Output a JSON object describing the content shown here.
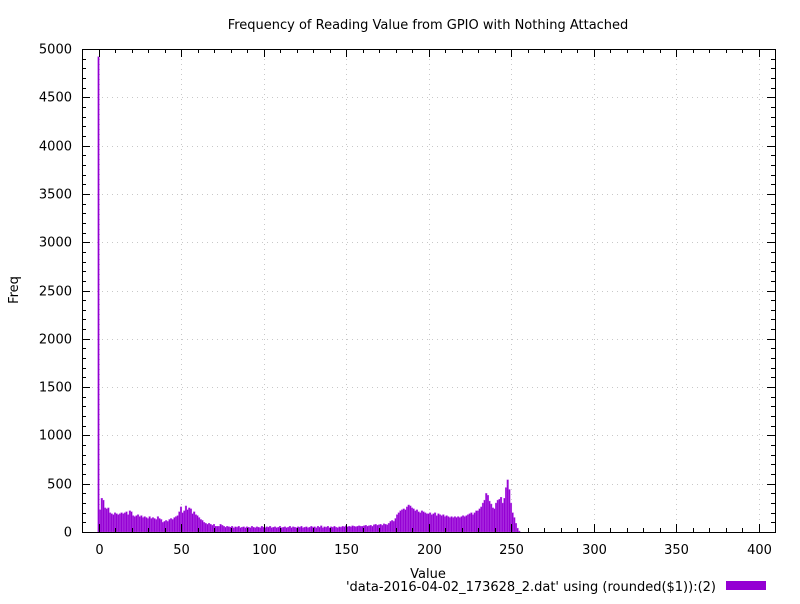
{
  "chart_data": {
    "type": "bar",
    "title": "Frequency of Reading Value from GPIO with Nothing Attached",
    "xlabel": "Value",
    "ylabel": "Freq",
    "xlim": [
      -10,
      410
    ],
    "ylim": [
      0,
      5000
    ],
    "xticks": [
      0,
      50,
      100,
      150,
      200,
      250,
      300,
      350,
      400
    ],
    "yticks": [
      0,
      500,
      1000,
      1500,
      2000,
      2500,
      3000,
      3500,
      4000,
      4500,
      5000
    ],
    "grid": true,
    "legend_position": "bottom-right",
    "series": [
      {
        "name": "'data-2016-04-02_173628_2.dat' using (rounded($1)):(2)",
        "color": "#9400d3",
        "x_start": 0,
        "values": [
          4920,
          230,
          350,
          330,
          250,
          240,
          250,
          200,
          190,
          180,
          200,
          190,
          180,
          190,
          200,
          190,
          200,
          210,
          180,
          220,
          210,
          170,
          160,
          170,
          180,
          160,
          170,
          150,
          160,
          150,
          140,
          160,
          140,
          150,
          140,
          130,
          160,
          140,
          130,
          100,
          110,
          120,
          110,
          130,
          140,
          130,
          150,
          160,
          170,
          210,
          260,
          200,
          220,
          270,
          230,
          250,
          240,
          190,
          210,
          180,
          170,
          150,
          130,
          120,
          100,
          90,
          80,
          90,
          80,
          70,
          80,
          60,
          60,
          60,
          80,
          70,
          60,
          50,
          60,
          55,
          50,
          60,
          45,
          55,
          50,
          60,
          45,
          50,
          55,
          45,
          55,
          50,
          45,
          60,
          50,
          45,
          55,
          50,
          45,
          60,
          50,
          45,
          55,
          50,
          60,
          45,
          50,
          55,
          45,
          50,
          60,
          45,
          50,
          55,
          45,
          50,
          60,
          45,
          55,
          50,
          45,
          55,
          50,
          60,
          45,
          50,
          55,
          45,
          50,
          60,
          50,
          55,
          45,
          60,
          50,
          65,
          45,
          55,
          50,
          60,
          45,
          55,
          50,
          60,
          50,
          45,
          55,
          50,
          60,
          55,
          65,
          55,
          60,
          55,
          65,
          60,
          55,
          60,
          65,
          60,
          60,
          65,
          70,
          60,
          65,
          70,
          60,
          75,
          80,
          70,
          75,
          80,
          70,
          85,
          80,
          75,
          90,
          110,
          120,
          110,
          140,
          180,
          200,
          220,
          230,
          240,
          230,
          260,
          280,
          270,
          250,
          240,
          220,
          230,
          210,
          200,
          220,
          210,
          200,
          190,
          190,
          200,
          180,
          190,
          200,
          170,
          190,
          180,
          170,
          180,
          160,
          170,
          160,
          150,
          160,
          150,
          160,
          150,
          160,
          150,
          160,
          170,
          160,
          170,
          180,
          190,
          200,
          180,
          200,
          220,
          220,
          240,
          260,
          300,
          330,
          400,
          380,
          320,
          290,
          250,
          240,
          300,
          330,
          340,
          360,
          300,
          350,
          460,
          540,
          440,
          300,
          200,
          150,
          90,
          40,
          10
        ]
      }
    ]
  }
}
